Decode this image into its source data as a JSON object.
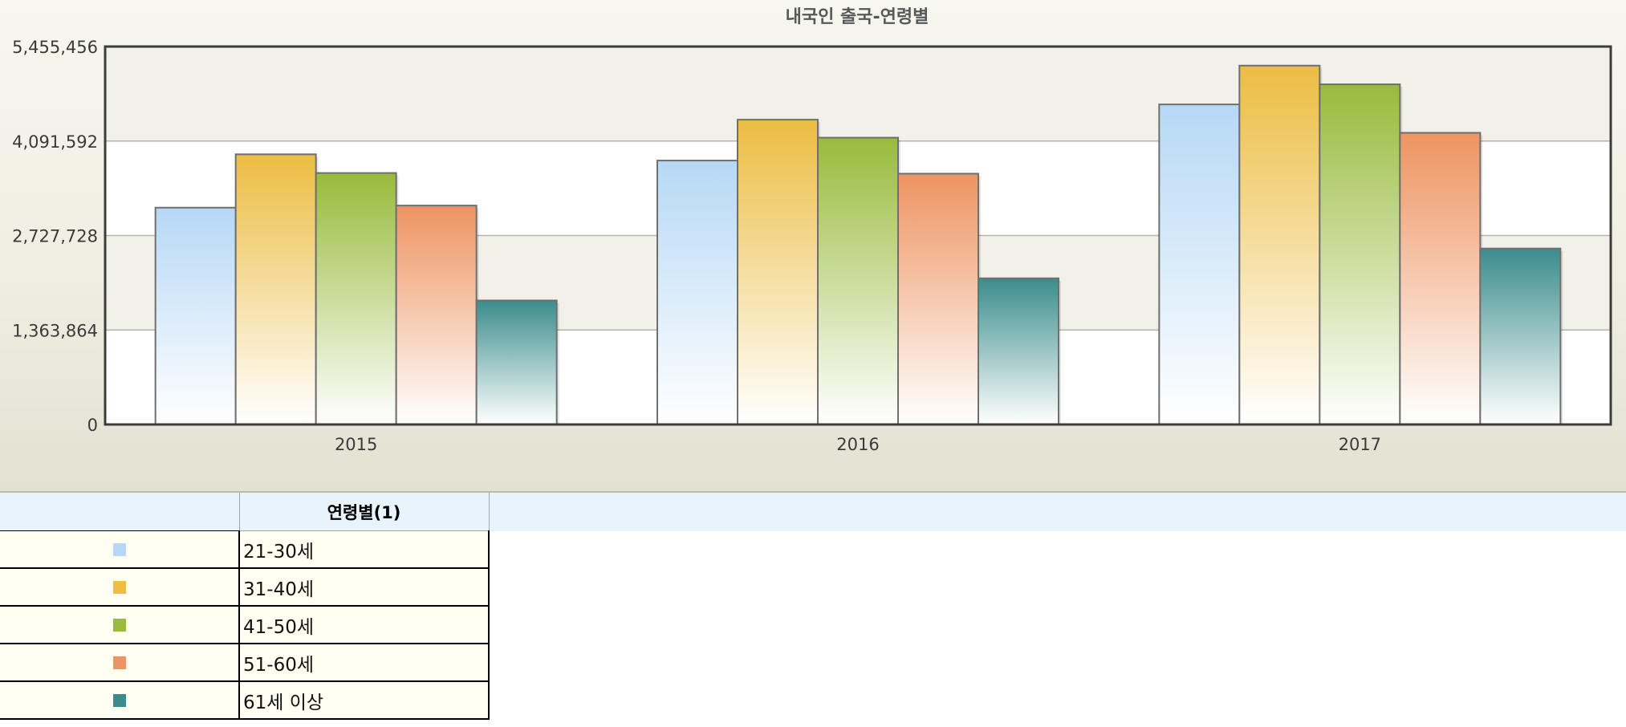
{
  "chart_data": {
    "type": "bar",
    "title": "내국인 출국-연령별",
    "categories": [
      "2015",
      "2016",
      "2017"
    ],
    "ylim": [
      0,
      5455456
    ],
    "yticks": [
      "0",
      "1,363,864",
      "2,727,728",
      "4,091,592",
      "5,455,456"
    ],
    "ytick_values": [
      0,
      1363864,
      2727728,
      4091592,
      5455456
    ],
    "grid": true,
    "legend_header": "연령별(1)",
    "legend_placement": "bottom-left",
    "series": [
      {
        "name": "21-30세",
        "color": "#b6d8f5",
        "values": [
          3130000,
          3810000,
          4620000
        ]
      },
      {
        "name": "31-40세",
        "color": "#ecbd42",
        "values": [
          3900000,
          4400000,
          5180000
        ]
      },
      {
        "name": "41-50세",
        "color": "#98bb3c",
        "values": [
          3630000,
          4140000,
          4910000
        ]
      },
      {
        "name": "51-60세",
        "color": "#ee9461",
        "values": [
          3160000,
          3620000,
          4210000
        ]
      },
      {
        "name": "61세 이상",
        "color": "#3b8c8c",
        "values": [
          1790000,
          2110000,
          2540000
        ]
      }
    ]
  }
}
